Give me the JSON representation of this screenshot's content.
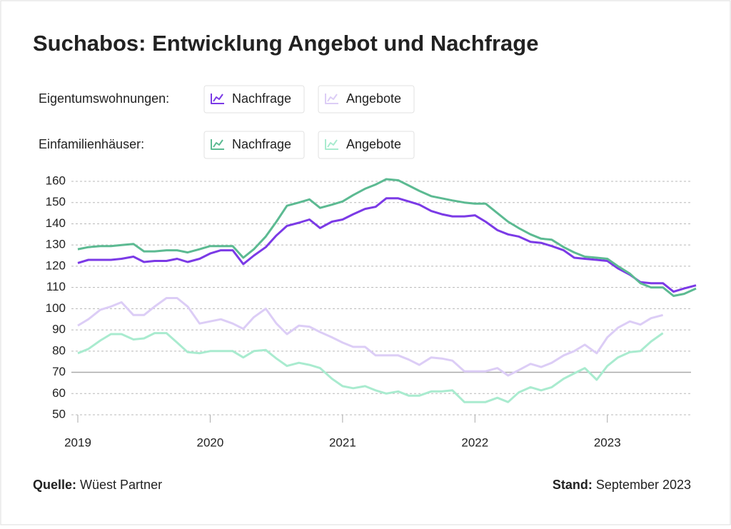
{
  "chart_data": {
    "type": "line",
    "title": "Suchabos: Entwicklung Angebot und Nachfrage",
    "groups": [
      {
        "label": "Eigentumswohnungen:",
        "series": [
          {
            "name": "Nachfrage",
            "color": "#7b3ae6",
            "values": [
              121.5,
              123,
              123,
              123,
              123.5,
              124.5,
              122,
              122.5,
              122.5,
              123.5,
              122,
              123.5,
              126,
              127.5,
              127.5,
              121,
              125,
              129,
              134.5,
              139,
              140.5,
              142,
              138,
              141,
              142,
              144.5,
              147,
              148,
              152,
              152,
              150.5,
              149,
              146,
              144.5,
              143.5,
              143.5,
              144,
              141,
              137,
              135,
              134,
              131.5,
              131,
              129.5,
              127.5,
              124,
              123.5,
              123,
              122.5,
              119,
              116,
              112.5,
              112,
              112,
              108,
              109.5,
              111
            ]
          },
          {
            "name": "Angebote",
            "color": "#dccdf6",
            "values": [
              92,
              95,
              99.5,
              101,
              103,
              97,
              97,
              101,
              105,
              105,
              101,
              93,
              94,
              95,
              93,
              90.5,
              96,
              100,
              93,
              88,
              92,
              91.5,
              89,
              86.5,
              84,
              82,
              82,
              78,
              78,
              78,
              76,
              73.5,
              77,
              76.5,
              75.5,
              70.5,
              70.5,
              70.5,
              72,
              68.5,
              71,
              74,
              72.5,
              74.5,
              78,
              80,
              83,
              79,
              86.5,
              91,
              94,
              92.5,
              95.5,
              97,
              null,
              null,
              null
            ]
          }
        ]
      },
      {
        "label": "Einfamilienhäuser:",
        "series": [
          {
            "name": "Nachfrage",
            "color": "#5cba92",
            "values": [
              128,
              129,
              129.5,
              129.5,
              130,
              130.5,
              127,
              127,
              127.5,
              127.5,
              126.5,
              128,
              129.5,
              129.5,
              129.5,
              124,
              128,
              134,
              141,
              148.5,
              150,
              151.5,
              147.5,
              149,
              150.5,
              153.5,
              156.5,
              158.5,
              161,
              160.5,
              158,
              155.5,
              153,
              152,
              151,
              150,
              149.5,
              149.5,
              145,
              141,
              138,
              135,
              133,
              132.5,
              129,
              126.5,
              124.5,
              124,
              123.5,
              120,
              116.5,
              112,
              110,
              110,
              106,
              107,
              109.5
            ]
          },
          {
            "name": "Angebote",
            "color": "#a9ebcf",
            "values": [
              79,
              81,
              85,
              88,
              88,
              85.5,
              86,
              88.5,
              88.5,
              84,
              79.5,
              79,
              80,
              80,
              80,
              77,
              80,
              80.5,
              76.5,
              73,
              74.5,
              73.5,
              72,
              67,
              63.5,
              62.5,
              63.5,
              61.5,
              60,
              61,
              59,
              59,
              61,
              61,
              61.5,
              56,
              56,
              56,
              58,
              56,
              60.5,
              63,
              61.5,
              63,
              67,
              69.5,
              72,
              66.5,
              73,
              77,
              79.5,
              80,
              84.5,
              88.5,
              null,
              null,
              null
            ]
          }
        ]
      }
    ],
    "x": [
      2019,
      2019.08,
      2019.17,
      2019.25,
      2019.33,
      2019.42,
      2019.5,
      2019.58,
      2019.67,
      2019.75,
      2019.83,
      2019.92,
      2020,
      2020.08,
      2020.17,
      2020.25,
      2020.33,
      2020.42,
      2020.5,
      2020.58,
      2020.67,
      2020.75,
      2020.83,
      2020.92,
      2021,
      2021.08,
      2021.17,
      2021.25,
      2021.33,
      2021.42,
      2021.5,
      2021.58,
      2021.67,
      2021.75,
      2021.83,
      2021.92,
      2022,
      2022.08,
      2022.17,
      2022.25,
      2022.33,
      2022.42,
      2022.5,
      2022.58,
      2022.67,
      2022.75,
      2022.83,
      2022.92,
      2023,
      2023.08,
      2023.17,
      2023.25,
      2023.33,
      2023.42,
      2023.5,
      2023.58,
      2023.67
    ],
    "xlim": [
      2019,
      2023.67
    ],
    "xticks": [
      2019,
      2020,
      2021,
      2022,
      2023
    ],
    "ylim": [
      50,
      160
    ],
    "yticks": [
      50,
      60,
      70,
      80,
      90,
      100,
      110,
      120,
      130,
      140,
      150,
      160
    ],
    "reference_line": 70,
    "grid": true,
    "source": {
      "label": "Quelle:",
      "text": "Wüest Partner"
    },
    "date": {
      "label": "Stand:",
      "text": "September 2023"
    }
  }
}
